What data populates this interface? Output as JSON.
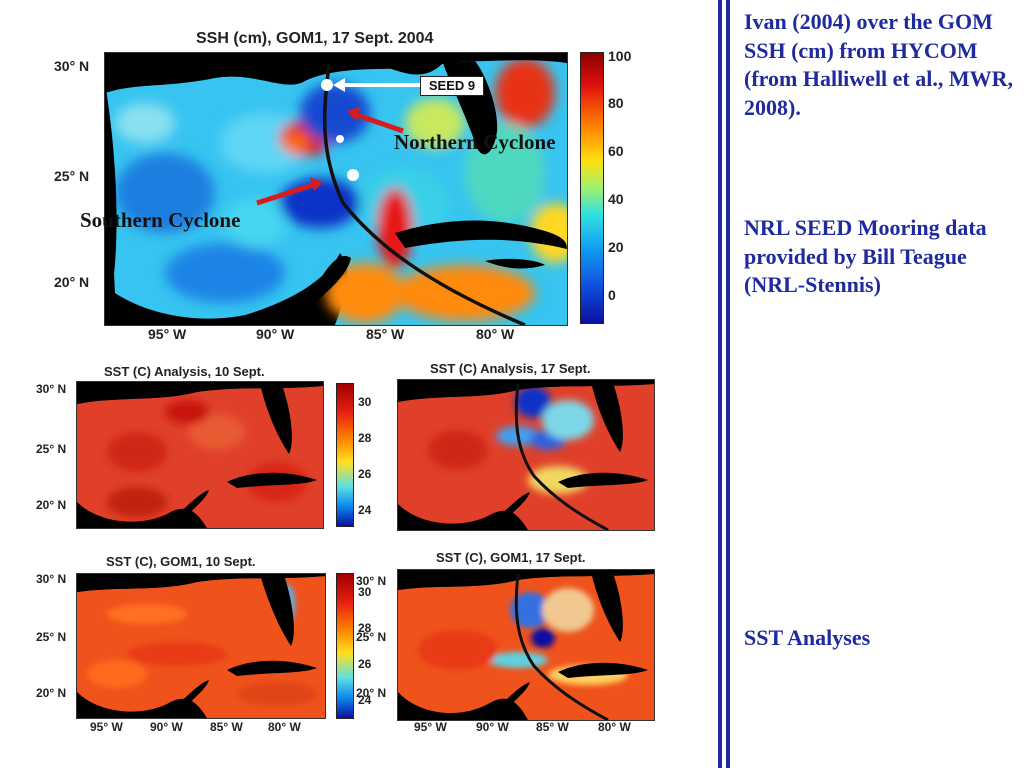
{
  "sidebar": {
    "para1": "Ivan (2004) over the GOM SSH (cm) from HYCOM (from Halliwell et al., MWR, 2008).",
    "para2": "NRL SEED Mooring data provided by Bill Teague (NRL-Stennis)",
    "para3": "SST Analyses"
  },
  "ssh_panel": {
    "title": "SSH (cm), GOM1, 17 Sept. 2004",
    "seed_label": "SEED 9",
    "northern": "Northern Cyclone",
    "southern": "Southern Cyclone",
    "y_ticks": [
      "30° N",
      "25° N",
      "20° N"
    ],
    "x_ticks": [
      "95° W",
      "90° W",
      "85° W",
      "80° W"
    ],
    "colorbar_ticks": [
      "100",
      "80",
      "60",
      "40",
      "20",
      "0"
    ]
  },
  "sst_analysis_10": {
    "title": "SST (C) Analysis, 10 Sept.",
    "y_ticks": [
      "30° N",
      "25° N",
      "20° N"
    ],
    "colorbar_ticks": [
      "30",
      "28",
      "26",
      "24"
    ]
  },
  "sst_analysis_17": {
    "title": "SST (C) Analysis, 17 Sept."
  },
  "sst_gom1_10": {
    "title": "SST (C), GOM1, 10 Sept.",
    "y_ticks": [
      "30° N",
      "25° N",
      "20° N"
    ],
    "x_ticks": [
      "95° W",
      "90° W",
      "85° W",
      "80° W"
    ],
    "colorbar_ticks": [
      "30",
      "28",
      "26",
      "24"
    ]
  },
  "sst_gom1_17": {
    "title": "SST (C), GOM1, 17 Sept.",
    "y_ticks": [
      "30° N",
      "25° N",
      "20° N"
    ],
    "x_ticks": [
      "95° W",
      "90° W",
      "85° W",
      "80° W"
    ]
  },
  "colors": {
    "text_blue": "#1f2a9e",
    "track": "#111111"
  }
}
